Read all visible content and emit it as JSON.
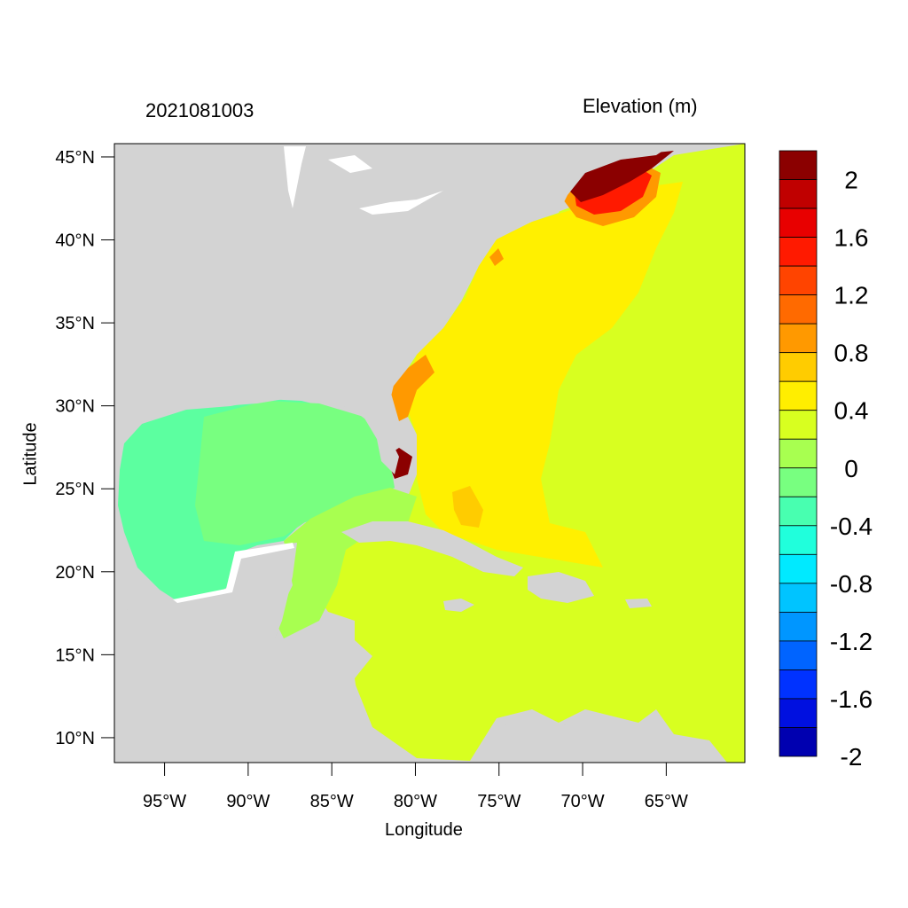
{
  "header": {
    "date_label": "2021081003",
    "variable_label": "Elevation (m)"
  },
  "axes": {
    "x_title": "Longitude",
    "y_title": "Latitude",
    "x_ticks": [
      "95°W",
      "90°W",
      "85°W",
      "80°W",
      "75°W",
      "70°W",
      "65°W"
    ],
    "x_tick_values": [
      -95,
      -90,
      -85,
      -80,
      -75,
      -70,
      -65
    ],
    "y_ticks": [
      "45°N",
      "40°N",
      "35°N",
      "30°N",
      "25°N",
      "20°N",
      "15°N",
      "10°N"
    ],
    "y_tick_values": [
      45,
      40,
      35,
      30,
      25,
      20,
      15,
      10
    ],
    "lon_range": [
      -98,
      -60.3
    ],
    "lat_range": [
      8.5,
      45.8
    ]
  },
  "colorbar": {
    "labels": [
      "2",
      "1.6",
      "1.2",
      "0.8",
      "0.4",
      "0",
      "-0.4",
      "-0.8",
      "-1.2",
      "-1.6",
      "-2"
    ],
    "label_values": [
      2,
      1.6,
      1.2,
      0.8,
      0.4,
      0,
      -0.4,
      -0.8,
      -1.2,
      -1.6,
      -2
    ],
    "colors_top_to_bottom": [
      "#8b0000",
      "#c00000",
      "#e80000",
      "#ff1a00",
      "#ff4400",
      "#ff6a00",
      "#ff9900",
      "#ffcc00",
      "#ffee00",
      "#d8ff20",
      "#a8ff50",
      "#78ff80",
      "#48ffb0",
      "#20ffdc",
      "#00eaff",
      "#00c4ff",
      "#0096ff",
      "#0064ff",
      "#0032ff",
      "#0010e0",
      "#0000b0"
    ]
  },
  "colors": {
    "land": "#d3d3d3",
    "water_white": "#ffffff"
  }
}
